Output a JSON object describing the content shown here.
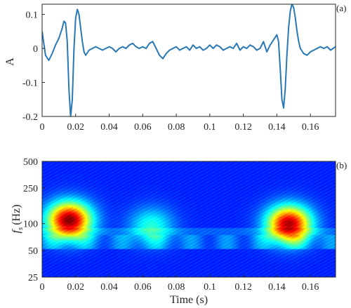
{
  "chart_data": [
    {
      "type": "line",
      "panel_label": "(a)",
      "ylabel": "A",
      "xlabel": "",
      "xlim": [
        0,
        0.175
      ],
      "ylim": [
        -0.2,
        0.13
      ],
      "xticks": [
        0,
        0.02,
        0.04,
        0.06,
        0.08,
        0.1,
        0.12,
        0.14,
        0.16
      ],
      "xtick_labels": [
        "0",
        "0.02",
        "0.04",
        "0.06",
        "0.08",
        "0.1",
        "0.12",
        "0.14",
        "0.16"
      ],
      "yticks": [
        0.1,
        0,
        -0.1,
        -0.2
      ],
      "ytick_labels": [
        "0.1",
        "0",
        "-0.1",
        "-0.2"
      ],
      "grid": false,
      "line_color": "#2878b5",
      "series": [
        {
          "x": [
            0,
            0.002,
            0.004,
            0.006,
            0.008,
            0.01,
            0.012,
            0.013,
            0.014,
            0.015,
            0.016,
            0.017,
            0.018,
            0.019,
            0.02,
            0.021,
            0.022,
            0.023,
            0.024,
            0.025,
            0.026,
            0.028,
            0.03,
            0.032,
            0.034,
            0.036,
            0.038,
            0.04,
            0.042,
            0.044,
            0.046,
            0.048,
            0.05,
            0.052,
            0.054,
            0.056,
            0.058,
            0.06,
            0.062,
            0.064,
            0.066,
            0.068,
            0.07,
            0.072,
            0.074,
            0.076,
            0.078,
            0.08,
            0.082,
            0.084,
            0.086,
            0.088,
            0.09,
            0.092,
            0.094,
            0.096,
            0.098,
            0.1,
            0.102,
            0.104,
            0.106,
            0.108,
            0.11,
            0.112,
            0.114,
            0.116,
            0.118,
            0.12,
            0.122,
            0.124,
            0.126,
            0.128,
            0.13,
            0.132,
            0.134,
            0.136,
            0.138,
            0.14,
            0.141,
            0.142,
            0.143,
            0.144,
            0.145,
            0.146,
            0.147,
            0.148,
            0.149,
            0.15,
            0.151,
            0.152,
            0.153,
            0.154,
            0.156,
            0.158,
            0.16,
            0.162,
            0.164,
            0.166,
            0.168,
            0.17,
            0.172,
            0.175
          ],
          "y": [
            0.05,
            -0.02,
            -0.035,
            -0.015,
            0.01,
            0.03,
            0.06,
            0.08,
            0.075,
            0.02,
            -0.12,
            -0.2,
            -0.15,
            0.0,
            0.09,
            0.115,
            0.1,
            0.06,
            0.02,
            -0.01,
            -0.02,
            -0.005,
            0.0,
            0.005,
            0.0,
            -0.005,
            0.0,
            0.005,
            0.0,
            -0.01,
            0.0,
            0.005,
            0.0,
            0.01,
            0.015,
            0.005,
            0.0,
            0.005,
            0.0,
            0.015,
            0.02,
            0.0,
            -0.02,
            -0.03,
            -0.015,
            -0.005,
            0.0,
            0.005,
            -0.005,
            0.0,
            0.005,
            -0.005,
            0.01,
            0.0,
            0.005,
            -0.005,
            0.0,
            0.01,
            0.0,
            0.01,
            0.005,
            -0.005,
            0.0,
            0.005,
            0.0,
            0.015,
            -0.005,
            0.005,
            0.0,
            0.01,
            0.005,
            -0.005,
            0.0,
            0.02,
            -0.01,
            0.01,
            0.025,
            0.04,
            0.02,
            -0.06,
            -0.15,
            -0.175,
            -0.12,
            -0.02,
            0.06,
            0.11,
            0.13,
            0.12,
            0.09,
            0.05,
            0.02,
            0.0,
            -0.015,
            -0.02,
            -0.01,
            -0.005,
            0.0,
            0.005,
            0.0,
            0.005,
            -0.005,
            0.005
          ]
        }
      ]
    },
    {
      "type": "heatmap",
      "panel_label": "(b)",
      "xlabel": "Time (s)",
      "ylabel_main": "f",
      "ylabel_sub": "s",
      "ylabel_unit": "(Hz)",
      "xlim": [
        0,
        0.175
      ],
      "ylim": [
        25,
        500
      ],
      "yscale": "log",
      "xticks": [
        0,
        0.02,
        0.04,
        0.06,
        0.08,
        0.1,
        0.12,
        0.14,
        0.16
      ],
      "xtick_labels": [
        "0",
        "0.02",
        "0.04",
        "0.06",
        "0.08",
        "0.1",
        "0.12",
        "0.14",
        "0.16"
      ],
      "yticks": [
        500,
        250,
        100,
        50,
        25
      ],
      "ytick_labels": [
        "500",
        "250",
        "100",
        "50",
        "25"
      ],
      "colormap": "jet",
      "hotspots": [
        {
          "x": 0.016,
          "y": 110,
          "intensity": 1.0
        },
        {
          "x": 0.147,
          "y": 100,
          "intensity": 0.95
        },
        {
          "x": 0.065,
          "y": 95,
          "intensity": 0.3
        }
      ]
    }
  ]
}
